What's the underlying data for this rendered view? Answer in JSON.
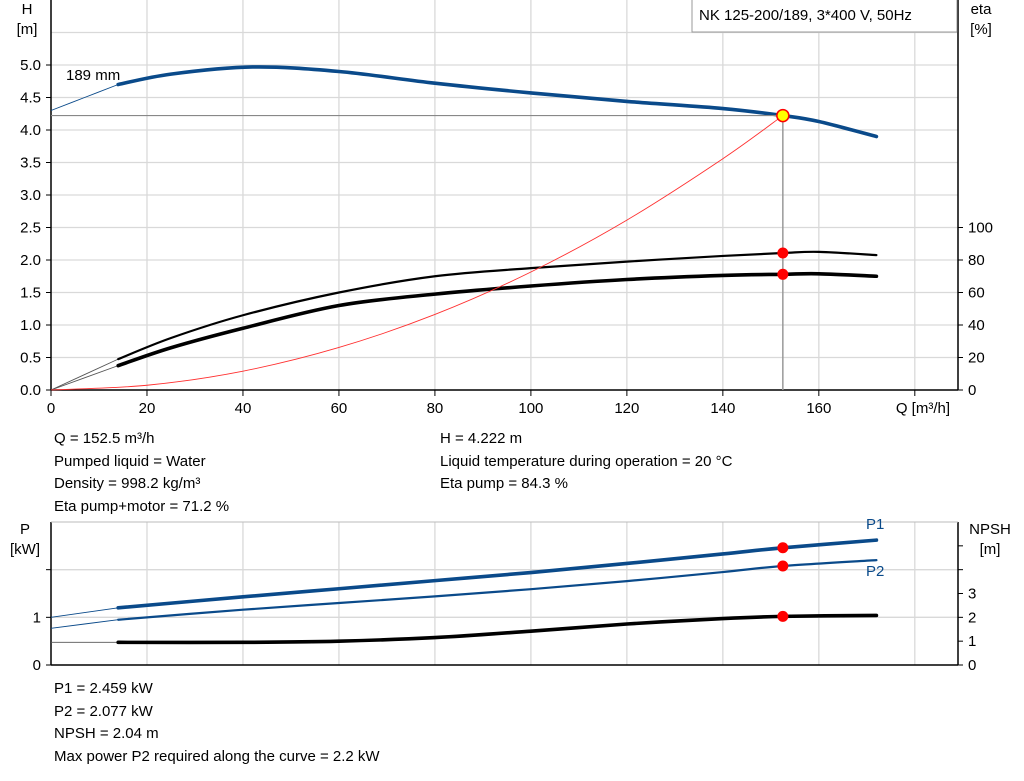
{
  "chart_data": [
    {
      "type": "line",
      "title": "NK 125-200/189, 3*400 V, 50Hz",
      "xlabel": "Q [m³/h]",
      "ylabel_left": [
        "H",
        "[m]"
      ],
      "ylabel_right": [
        "eta",
        "[%]"
      ],
      "xlim": [
        0,
        189
      ],
      "ylim_left": [
        0,
        6
      ],
      "ylim_right": [
        0,
        240
      ],
      "x_ticks": [
        "0",
        "20",
        "40",
        "60",
        "80",
        "100",
        "120",
        "140",
        "160"
      ],
      "y_ticks_left": [
        "0.0",
        "0.5",
        "1.0",
        "1.5",
        "2.0",
        "2.5",
        "3.0",
        "3.5",
        "4.0",
        "4.5",
        "5.0"
      ],
      "y_ticks_right": [
        "0",
        "20",
        "40",
        "60",
        "80",
        "100"
      ],
      "grid": true,
      "curve_label": "189 mm",
      "series": [
        {
          "key": "head",
          "axis": "left",
          "color": "#0a4a8a",
          "x": [
            0,
            7,
            14,
            25,
            42,
            60,
            80,
            100,
            120,
            140,
            152.5,
            160,
            172
          ],
          "y": [
            4.3,
            4.5,
            4.7,
            4.86,
            4.97,
            4.9,
            4.72,
            4.57,
            4.44,
            4.33,
            4.222,
            4.13,
            3.9
          ],
          "extension_until": 14
        },
        {
          "key": "eta_pump",
          "axis": "right",
          "color": "#000000",
          "x": [
            0,
            14,
            25,
            40,
            60,
            80,
            100,
            120,
            140,
            152.5,
            160,
            172
          ],
          "y": [
            0,
            19,
            32,
            46,
            60,
            70,
            75,
            79,
            82.5,
            84.3,
            85,
            83
          ],
          "extension_until": 14
        },
        {
          "key": "eta_pump_motor",
          "axis": "right",
          "color": "#000000",
          "x": [
            0,
            14,
            25,
            40,
            60,
            80,
            100,
            120,
            140,
            152.5,
            160,
            172
          ],
          "y": [
            0,
            15,
            26,
            38,
            52,
            59,
            64,
            68,
            70.5,
            71.2,
            71.5,
            70
          ],
          "extension_until": 14
        },
        {
          "key": "system_curve",
          "axis": "left",
          "color": "#ff3030",
          "x": [
            0,
            20,
            40,
            60,
            80,
            100,
            120,
            140,
            152.5
          ],
          "y": [
            0,
            0.073,
            0.29,
            0.654,
            1.162,
            1.815,
            2.614,
            3.558,
            4.222
          ]
        }
      ],
      "operating_point": {
        "Q": 152.5,
        "H": 4.222,
        "eta_pump": 84.3,
        "eta_pump_motor": 71.2
      }
    },
    {
      "type": "line",
      "xlabel": "",
      "ylabel_left": [
        "P",
        "[kW]"
      ],
      "ylabel_right": [
        "NPSH",
        "[m]"
      ],
      "xlim": [
        0,
        189
      ],
      "ylim_left": [
        0,
        3
      ],
      "ylim_right": [
        0,
        6
      ],
      "y_ticks_left": [
        "0",
        "1"
      ],
      "y_ticks_right": [
        "0",
        "1",
        "2",
        "3"
      ],
      "grid": true,
      "series": [
        {
          "key": "P1",
          "name": "P1",
          "axis": "left",
          "color": "#0a4a8a",
          "x": [
            0,
            14,
            40,
            60,
            80,
            100,
            120,
            140,
            152.5,
            172
          ],
          "y": [
            1.0,
            1.2,
            1.43,
            1.6,
            1.77,
            1.94,
            2.13,
            2.33,
            2.459,
            2.62
          ],
          "extension_until": 14
        },
        {
          "key": "P2",
          "name": "P2",
          "axis": "left",
          "color": "#0a4a8a",
          "x": [
            0,
            14,
            40,
            60,
            80,
            100,
            120,
            140,
            152.5,
            172
          ],
          "y": [
            0.77,
            0.95,
            1.16,
            1.3,
            1.44,
            1.59,
            1.76,
            1.95,
            2.077,
            2.2
          ],
          "extension_until": 14
        },
        {
          "key": "NPSH",
          "axis": "right",
          "color": "#000000",
          "x": [
            0,
            14,
            40,
            60,
            80,
            100,
            120,
            140,
            152.5,
            172
          ],
          "y": [
            0.95,
            0.95,
            0.95,
            1.0,
            1.15,
            1.42,
            1.72,
            1.95,
            2.04,
            2.08
          ],
          "extension_until": 14
        }
      ],
      "operating_point": {
        "Q": 152.5,
        "P1": 2.459,
        "P2": 2.077,
        "NPSH": 2.04
      }
    }
  ],
  "info_top_left": [
    "Q = 152.5 m³/h",
    "Pumped liquid = Water",
    "Density = 998.2 kg/m³",
    "Eta pump+motor = 71.2 %"
  ],
  "info_top_right": [
    "H = 4.222 m",
    "Liquid temperature during operation = 20 °C",
    "Eta pump = 84.3 %"
  ],
  "info_bottom": [
    "P1 = 2.459 kW",
    "P2 = 2.077 kW",
    "NPSH = 2.04 m",
    "Max power P2 required along the curve = 2.2 kW"
  ],
  "colors": {
    "head": "#0a4a8a",
    "marker": "#ff0000",
    "op_marker_fill": "#ffff00",
    "grid": "#d9d9d9"
  }
}
